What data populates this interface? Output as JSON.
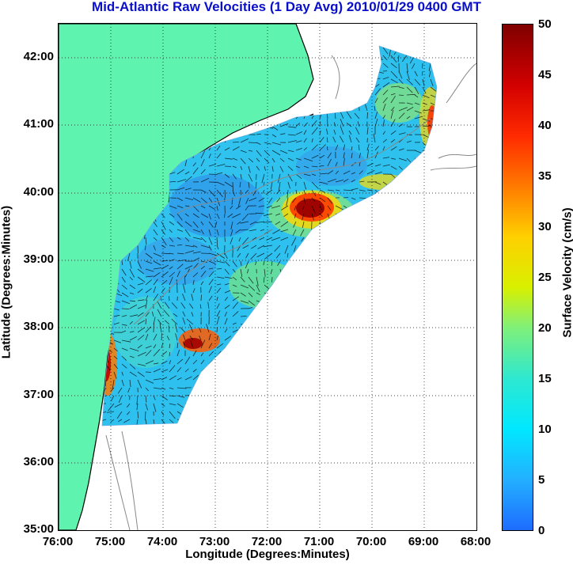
{
  "title": "Mid-Atlantic Raw Velocities (1 Day Avg) 2010/01/29 0400 GMT",
  "axes": {
    "xlabel": "Longitude (Degrees:Minutes)",
    "ylabel": "Latitude (Degrees:Minutes)",
    "xticks": [
      "76:00",
      "75:00",
      "74:00",
      "73:00",
      "72:00",
      "71:00",
      "70:00",
      "69:00",
      "68:00"
    ],
    "yticks": [
      "42:00",
      "41:00",
      "40:00",
      "39:00",
      "38:00",
      "37:00",
      "36:00",
      "35:00"
    ],
    "x_range_deg_west": [
      76,
      68
    ],
    "y_range_deg_north": [
      35,
      42.5
    ],
    "grid": "dotted"
  },
  "colorbar": {
    "title": "Surface Velocity (cm/s)",
    "ticks": [
      "50",
      "45",
      "40",
      "35",
      "30",
      "25",
      "20",
      "15",
      "10",
      "5",
      "0"
    ],
    "range": [
      0,
      50
    ]
  },
  "colors": {
    "land": "#5ff3b0",
    "title": "#0a10c8",
    "coastline": "#000000",
    "bathymetry": "#888888"
  }
}
